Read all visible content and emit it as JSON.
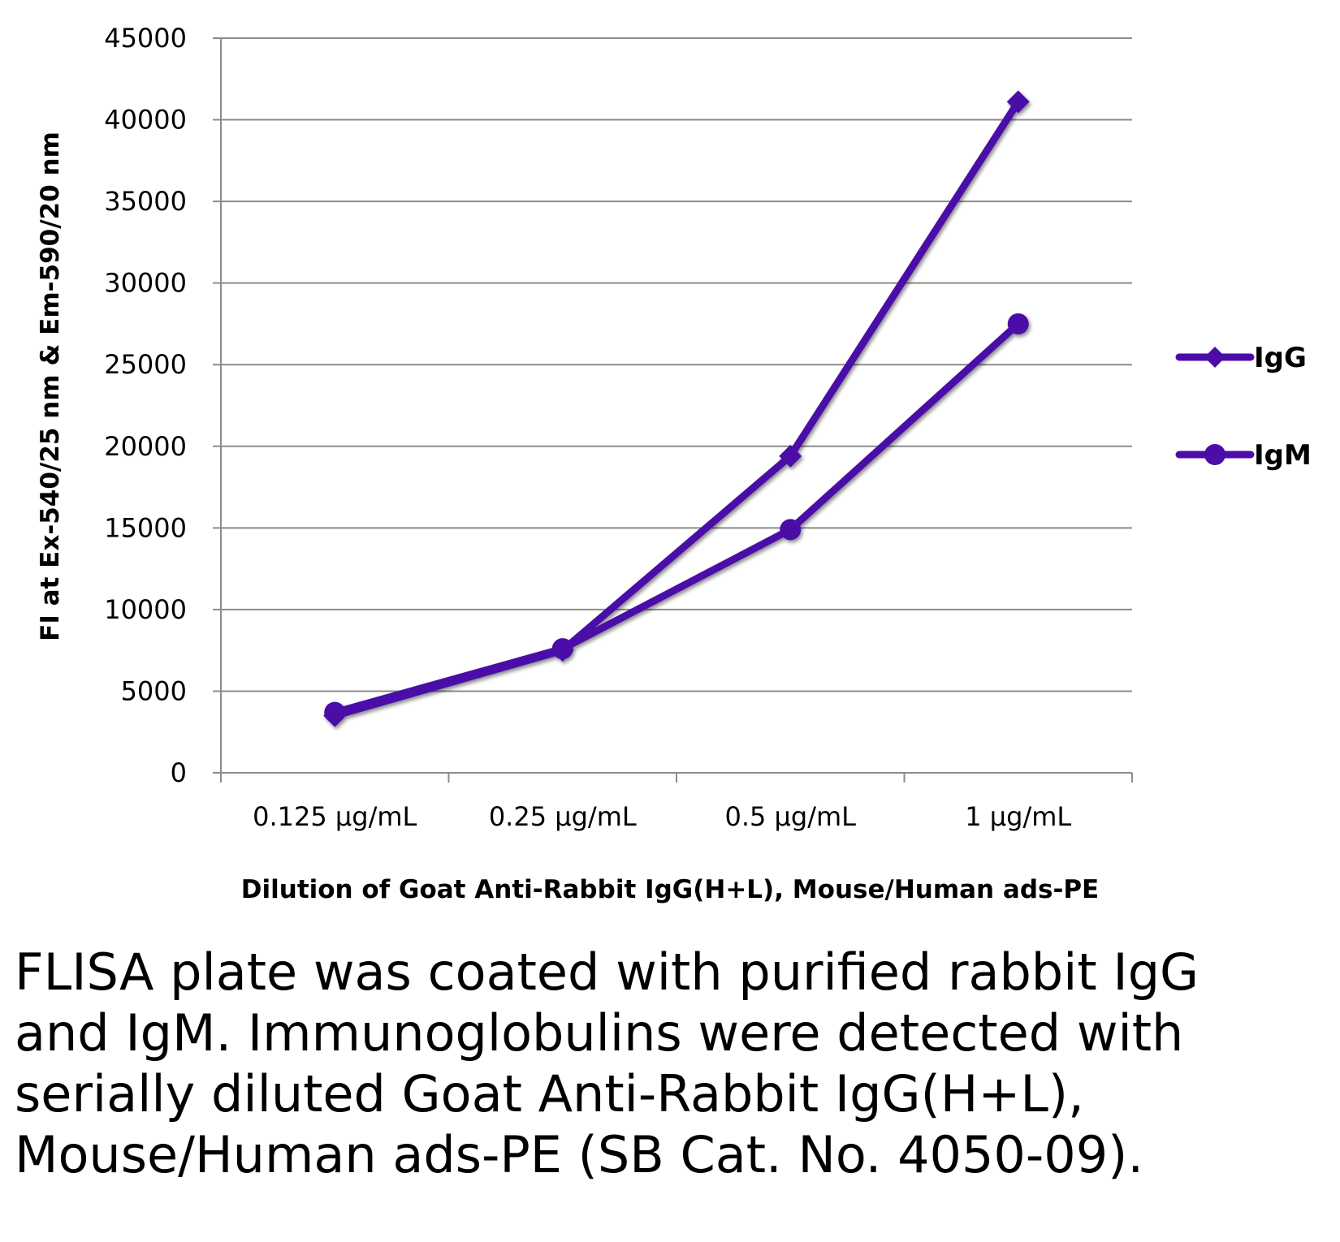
{
  "chart_data": {
    "type": "line",
    "title": "",
    "xlabel": "Dilution of Goat Anti-Rabbit IgG(H+L), Mouse/Human ads-PE",
    "ylabel": "FI at Ex-540/25 nm & Em-590/20 nm",
    "categories": [
      "0.125 µg/mL",
      "0.25 µg/mL",
      "0.5 µg/mL",
      "1 µg/mL"
    ],
    "ylim": [
      0,
      45000
    ],
    "yticks": [
      0,
      5000,
      10000,
      15000,
      20000,
      25000,
      30000,
      35000,
      40000,
      45000
    ],
    "grid": true,
    "legend_position": "right",
    "series": [
      {
        "name": "IgG",
        "marker": "diamond",
        "color": "#4b0ca8",
        "values": [
          3500,
          7500,
          19400,
          41100
        ]
      },
      {
        "name": "IgM",
        "marker": "circle",
        "color": "#4b0ca8",
        "values": [
          3700,
          7600,
          14900,
          27500
        ]
      }
    ]
  },
  "caption": "FLISA plate was coated with purified rabbit IgG and IgM.  Immunoglobulins were detected with serially diluted Goat Anti-Rabbit IgG(H+L), Mouse/Human ads-PE (SB Cat. No. 4050-09)."
}
